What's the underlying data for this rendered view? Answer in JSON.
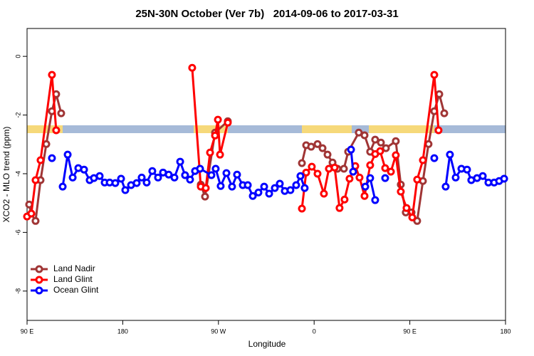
{
  "chart_data": {
    "type": "line",
    "title": "25N-30N October (Ver 7b)   2014-09-06 to 2017-03-31",
    "x_label": "Longitude",
    "y_label": "XCO2 - MLO trend (ppm)",
    "xlim": [
      90,
      540
    ],
    "ylim": [
      -9,
      0.95
    ],
    "xticks": [
      {
        "value": 90,
        "label": "90 E"
      },
      180,
      {
        "value": 270,
        "label": "90 W"
      },
      {
        "value": 360,
        "label": "0"
      },
      {
        "value": 450,
        "label": "90 E"
      },
      {
        "value": 540,
        "label": "180"
      }
    ],
    "yticks": [
      0,
      -2,
      -4,
      -6,
      -8
    ],
    "legend": "bottomleft",
    "series": [
      {
        "name": "Land Nadir",
        "color": "#a03535",
        "x": [
          92.0,
          94.0,
          98.0,
          102.7,
          108.1,
          113.4,
          117.4,
          122.1,
          null,
          253.4,
          257.4,
          266.8,
          278.8,
          null,
          348.5,
          352.5,
          357.2,
          363.2,
          367.9,
          372.6,
          377.3,
          381.9,
          388.0,
          392.0,
          402.0,
          407.4,
          412.7,
          417.4,
          422.8,
          427.5,
          436.8,
          441.5,
          446.2,
          451.6,
          456.9,
          462.3,
          467.6,
          473.0,
          477.7,
          482.4
        ],
        "values": [
          -5.05,
          -5.36,
          -5.61,
          -4.22,
          -2.99,
          -1.87,
          -1.29,
          -1.94,
          null,
          -4.37,
          -4.78,
          -2.6,
          -2.21,
          null,
          -3.64,
          -3.03,
          -3.08,
          -2.99,
          -3.13,
          -3.35,
          -3.62,
          -3.83,
          -3.83,
          -3.25,
          -2.6,
          -2.69,
          -3.25,
          -2.84,
          -2.94,
          -3.13,
          -2.89,
          -4.37,
          -5.32,
          -5.32,
          -5.61,
          -4.25,
          -2.99,
          -1.87,
          -1.29,
          -1.94
        ]
      },
      {
        "name": "Land Glint",
        "color": "#ff0000",
        "x": [
          90,
          94.0,
          98.0,
          102.7,
          113.4,
          117.4,
          null,
          245.3,
          253.4,
          258.1,
          262.1,
          266.8,
          269.5,
          271.5,
          278.8,
          null,
          348.5,
          352.5,
          357.8,
          363.2,
          369.2,
          373.9,
          379.3,
          383.9,
          388.6,
          393.3,
          398.7,
          402.7,
          407.4,
          412.7,
          417.4,
          422.1,
          426.8,
          432.2,
          436.8,
          441.5,
          446.9,
          452.3,
          456.9,
          462.3,
          473.0,
          477.0
        ],
        "values": [
          -5.46,
          -5.36,
          -4.22,
          -3.54,
          -0.63,
          -2.52,
          null,
          -0.39,
          -4.44,
          -4.49,
          -3.28,
          -2.7,
          -2.16,
          -3.35,
          -2.26,
          null,
          -5.19,
          -3.96,
          -3.76,
          -4.0,
          -4.68,
          -3.83,
          -3.79,
          -5.17,
          -4.88,
          -4.17,
          -3.74,
          -4.13,
          -4.76,
          -3.71,
          -3.33,
          -3.23,
          -3.81,
          -3.93,
          -3.37,
          -4.61,
          -5.17,
          -5.49,
          -4.2,
          -3.54,
          -0.63,
          -2.52
        ]
      },
      {
        "name": "Ocean Glint",
        "color": "#0000ff",
        "x": [
          113.4,
          null,
          123.5,
          128.2,
          132.9,
          138.2,
          143.6,
          148.9,
          152.9,
          158.3,
          163.0,
          167.7,
          173.0,
          178.4,
          182.4,
          187.8,
          193.1,
          197.8,
          202.5,
          207.8,
          213.2,
          217.9,
          223.2,
          228.6,
          234.0,
          238.6,
          243.3,
          248.0,
          252.7,
          263.4,
          267.4,
          272.1,
          277.5,
          282.8,
          287.5,
          292.9,
          297.6,
          302.3,
          307.6,
          313.0,
          317.7,
          323.0,
          327.7,
          332.4,
          337.7,
          343.1,
          347.1,
          351.1,
          null,
          394.7,
          396.7,
          null,
          408.1,
          412.7,
          417.4,
          null,
          426.8,
          null,
          473.0,
          null,
          483.7,
          487.7,
          493.1,
          498.5,
          503.8,
          507.8,
          513.2,
          518.6,
          523.9,
          529.3,
          534.0,
          538.7
        ],
        "values": [
          -3.47,
          null,
          -4.44,
          -3.35,
          -4.13,
          -3.81,
          -3.86,
          -4.22,
          -4.15,
          -4.08,
          -4.3,
          -4.3,
          -4.32,
          -4.17,
          -4.56,
          -4.39,
          -4.32,
          -4.13,
          -4.3,
          -3.91,
          -4.13,
          -3.96,
          -4.03,
          -4.13,
          -3.59,
          -4.05,
          -4.2,
          -3.91,
          -3.83,
          -4.05,
          -3.83,
          -4.42,
          -3.98,
          -4.44,
          -4.03,
          -4.39,
          -4.39,
          -4.76,
          -4.64,
          -4.44,
          -4.68,
          -4.49,
          -4.34,
          -4.59,
          -4.56,
          -4.39,
          -4.08,
          -4.49,
          null,
          -3.18,
          -3.93,
          null,
          -4.44,
          -4.15,
          -4.9,
          null,
          -4.15,
          null,
          -3.47,
          null,
          -4.44,
          -3.35,
          -4.13,
          -3.83,
          -3.86,
          -4.22,
          -4.15,
          -4.08,
          -4.3,
          -4.3,
          -4.25,
          -4.17
        ]
      }
    ]
  }
}
